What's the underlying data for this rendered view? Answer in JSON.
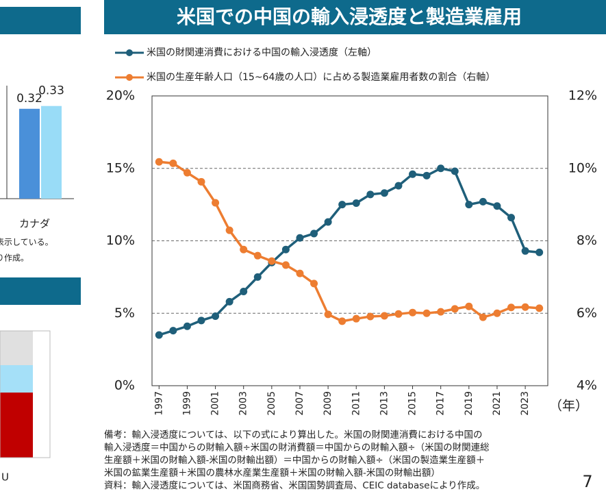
{
  "chart_data": [
    {
      "type": "line",
      "title": "米国での中国の輸入浸透度と製造業雇用",
      "x": [
        1997,
        1998,
        1999,
        2000,
        2001,
        2002,
        2003,
        2004,
        2005,
        2006,
        2007,
        2008,
        2009,
        2010,
        2011,
        2012,
        2013,
        2014,
        2015,
        2016,
        2017,
        2018,
        2019,
        2020,
        2021,
        2022,
        2023,
        2024
      ],
      "xlim": [
        1996.5,
        2024.6
      ],
      "xticks": [
        1997,
        1999,
        2001,
        2003,
        2005,
        2007,
        2009,
        2011,
        2013,
        2015,
        2017,
        2019,
        2021,
        2023
      ],
      "x_unit": "（年）",
      "ylim": [
        0,
        20
      ],
      "yticks": [
        {
          "value": 0,
          "label": "0%"
        },
        {
          "value": 5,
          "label": "5%"
        },
        {
          "value": 10,
          "label": "10%"
        },
        {
          "value": 15,
          "label": "15%"
        },
        {
          "value": 20,
          "label": "20%"
        }
      ],
      "y2lim": [
        4,
        12
      ],
      "y2ticks": [
        {
          "value": 4,
          "label": "4%"
        },
        {
          "value": 6,
          "label": "6%"
        },
        {
          "value": 8,
          "label": "8%"
        },
        {
          "value": 10,
          "label": "10%"
        },
        {
          "value": 12,
          "label": "12%"
        }
      ],
      "grid": true,
      "series": [
        {
          "name": "米国の財関連消費における中国の輸入浸透度（左軸）",
          "color": "#1f5f7a",
          "axis": "y",
          "values": [
            3.5,
            3.8,
            4.1,
            4.5,
            4.8,
            5.8,
            6.5,
            7.5,
            8.5,
            9.4,
            10.2,
            10.5,
            11.3,
            12.5,
            12.6,
            13.2,
            13.3,
            13.8,
            14.6,
            14.5,
            15.0,
            14.8,
            12.5,
            12.7,
            12.4,
            11.6,
            9.3,
            9.2
          ]
        },
        {
          "name": "米国の生産年齢人口（15~64歳の人口）に占める製造業雇用者数の割合（右軸）",
          "color": "#ed7d31",
          "axis": "y2",
          "values": [
            10.18,
            10.14,
            9.88,
            9.63,
            9.05,
            8.29,
            7.76,
            7.59,
            7.44,
            7.33,
            7.1,
            6.82,
            5.97,
            5.78,
            5.85,
            5.91,
            5.93,
            5.98,
            6.02,
            6.0,
            6.04,
            6.12,
            6.19,
            5.89,
            6.0,
            6.16,
            6.17,
            6.14
          ]
        }
      ]
    },
    {
      "type": "bar",
      "categories": [
        "カナダ"
      ],
      "ylim": [
        0,
        0.4
      ],
      "series": [
        {
          "color": "#4a90d9",
          "values": [
            0.32
          ]
        },
        {
          "color": "#99dcf7",
          "values": [
            0.33
          ]
        }
      ]
    }
  ],
  "left_panel": {
    "note_lines": [
      "表示している。",
      "り作成。"
    ],
    "lower_label": "U"
  },
  "notes": [
    "備考：輸入浸透度については、以下の式により算出した。米国の財関連消費における中国の",
    "輸入浸透度＝中国からの財輸入額÷米国の財消費額＝中国からの財輸入額÷（米国の財関連総",
    "生産額＋米国の財輸入額-米国の財輸出額）＝中国からの財輸入額÷（米国の製造業生産額＋",
    "米国の鉱業生産額＋米国の農林水産業生産額＋米国の財輸入額-米国の財輸出額）",
    "資料：輸入浸透度については、米国商務省、米国国勢調査局、CEIC databaseにより作成。"
  ],
  "page_number": "7"
}
